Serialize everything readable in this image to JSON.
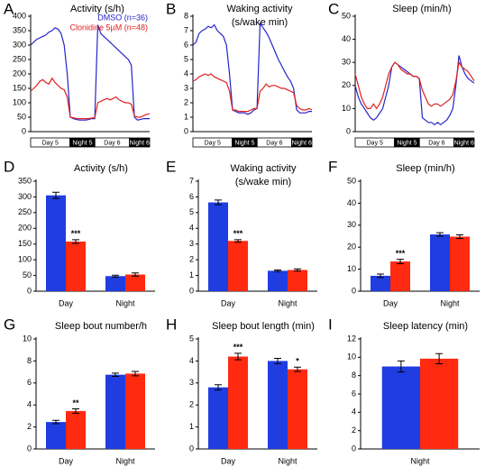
{
  "chart_data": [
    {
      "type": "line",
      "panel": "A",
      "title": [
        "Activity (s/h)"
      ],
      "periods": [
        "Day 5",
        "Night 5",
        "Day 6",
        "Night 6"
      ],
      "series": [
        {
          "name": "DMSO (n=36)",
          "color": "#2424c8",
          "values": [
            300,
            310,
            320,
            325,
            330,
            335,
            345,
            350,
            360,
            355,
            340,
            300,
            200,
            50,
            45,
            42,
            40,
            40,
            40,
            42,
            45,
            45,
            370,
            340,
            330,
            320,
            310,
            300,
            290,
            280,
            270,
            260,
            250,
            230,
            50,
            40,
            42,
            45,
            45,
            45
          ]
        },
        {
          "name": "Clonidine 5µM (n=48)",
          "color": "#e02020",
          "values": [
            140,
            150,
            160,
            175,
            180,
            170,
            165,
            185,
            170,
            160,
            150,
            145,
            120,
            50,
            48,
            45,
            45,
            45,
            45,
            45,
            47,
            48,
            100,
            105,
            110,
            115,
            110,
            115,
            120,
            110,
            105,
            100,
            100,
            95,
            55,
            50,
            50,
            55,
            60,
            62
          ]
        }
      ],
      "ylim": [
        0,
        400
      ],
      "yticks": [
        0,
        50,
        100,
        150,
        200,
        250,
        300,
        350,
        400
      ]
    },
    {
      "type": "line",
      "panel": "B",
      "title": [
        "Waking activity",
        "(s/wake min)"
      ],
      "periods": [
        "Day 5",
        "Night 5",
        "Day 6",
        "Night 6"
      ],
      "series": [
        {
          "color": "#2424c8",
          "values": [
            6.0,
            6.2,
            6.8,
            7.0,
            7.1,
            7.3,
            7.2,
            7.4,
            7.0,
            6.8,
            6.6,
            6.0,
            4.0,
            1.5,
            1.4,
            1.3,
            1.3,
            1.3,
            1.2,
            1.3,
            1.5,
            1.6,
            7.5,
            7.2,
            6.9,
            6.5,
            6.0,
            5.5,
            5.0,
            4.6,
            4.2,
            3.8,
            3.5,
            3.0,
            1.5,
            1.3,
            1.3,
            1.3,
            1.4,
            1.4
          ]
        },
        {
          "color": "#e02020",
          "values": [
            3.5,
            3.6,
            3.8,
            3.9,
            4.0,
            3.9,
            4.0,
            3.8,
            3.7,
            3.6,
            3.5,
            3.4,
            2.8,
            1.5,
            1.5,
            1.4,
            1.4,
            1.4,
            1.4,
            1.5,
            1.6,
            1.6,
            2.8,
            3.0,
            3.3,
            3.1,
            3.2,
            3.2,
            3.1,
            3.0,
            3.0,
            2.9,
            2.8,
            2.7,
            1.8,
            1.6,
            1.5,
            1.5,
            1.6,
            1.5
          ]
        }
      ],
      "ylim": [
        0,
        8
      ],
      "yticks": [
        0,
        1,
        2,
        3,
        4,
        5,
        6,
        7,
        8
      ]
    },
    {
      "type": "line",
      "panel": "C",
      "title": [
        "Sleep (min/h)"
      ],
      "periods": [
        "Day 5",
        "Night 5",
        "Day 6",
        "Night 6"
      ],
      "series": [
        {
          "color": "#2424c8",
          "values": [
            20,
            15,
            12,
            10,
            8,
            6,
            5,
            6,
            8,
            10,
            15,
            20,
            28,
            30,
            29,
            28,
            27,
            26,
            25,
            24,
            24,
            23,
            6,
            5,
            4,
            4,
            3,
            4,
            3,
            4,
            5,
            7,
            10,
            20,
            33,
            28,
            25,
            23,
            22,
            21
          ]
        },
        {
          "color": "#e02020",
          "values": [
            25,
            20,
            15,
            12,
            10,
            10,
            12,
            10,
            12,
            15,
            20,
            25,
            28,
            30,
            29,
            27,
            26,
            25,
            25,
            24,
            24,
            23,
            18,
            15,
            12,
            11,
            12,
            12,
            11,
            12,
            13,
            14,
            16,
            22,
            30,
            28,
            27,
            26,
            24,
            22
          ]
        }
      ],
      "ylim": [
        0,
        50
      ],
      "yticks": [
        0,
        10,
        20,
        30,
        40,
        50
      ]
    },
    {
      "type": "bar",
      "panel": "D",
      "title": [
        "Activity (s/h)"
      ],
      "categories": [
        "Day",
        "Night"
      ],
      "series": [
        {
          "color": "#1f3de0",
          "values": [
            305,
            48
          ],
          "errors": [
            10,
            3
          ]
        },
        {
          "color": "#ff2a10",
          "values": [
            158,
            53
          ],
          "errors": [
            6,
            5
          ],
          "labels": [
            "***",
            null
          ]
        }
      ],
      "ylim": [
        0,
        350
      ],
      "yticks": [
        0,
        50,
        100,
        150,
        200,
        250,
        300,
        350
      ]
    },
    {
      "type": "bar",
      "panel": "E",
      "title": [
        "Waking activity",
        "(s/wake min)"
      ],
      "categories": [
        "Day",
        "Night"
      ],
      "series": [
        {
          "color": "#1f3de0",
          "values": [
            5.65,
            1.3
          ],
          "errors": [
            0.15,
            0.05
          ]
        },
        {
          "color": "#ff2a10",
          "values": [
            3.2,
            1.35
          ],
          "errors": [
            0.08,
            0.07
          ],
          "labels": [
            "***",
            null
          ]
        }
      ],
      "ylim": [
        0,
        7
      ],
      "yticks": [
        0,
        1,
        2,
        3,
        4,
        5,
        6,
        7
      ]
    },
    {
      "type": "bar",
      "panel": "F",
      "title": [
        "Sleep (min/h)"
      ],
      "categories": [
        "Day",
        "Night"
      ],
      "series": [
        {
          "color": "#1f3de0",
          "values": [
            7,
            25.8
          ],
          "errors": [
            0.8,
            0.8
          ]
        },
        {
          "color": "#ff2a10",
          "values": [
            13.5,
            24.8
          ],
          "errors": [
            1,
            0.8
          ],
          "labels": [
            "***",
            null
          ]
        }
      ],
      "ylim": [
        0,
        50
      ],
      "yticks": [
        0,
        10,
        20,
        30,
        40,
        50
      ]
    },
    {
      "type": "bar",
      "panel": "G",
      "title": [
        "Sleep bout number/h"
      ],
      "categories": [
        "Day",
        "Night"
      ],
      "series": [
        {
          "color": "#1f3de0",
          "values": [
            2.45,
            6.75
          ],
          "errors": [
            0.15,
            0.15
          ]
        },
        {
          "color": "#ff2a10",
          "values": [
            3.45,
            6.85
          ],
          "errors": [
            0.2,
            0.2
          ],
          "labels": [
            "**",
            null
          ]
        }
      ],
      "ylim": [
        0,
        10
      ],
      "yticks": [
        0,
        2,
        4,
        6,
        8,
        10
      ]
    },
    {
      "type": "bar",
      "panel": "H",
      "title": [
        "Sleep bout length (min)"
      ],
      "categories": [
        "Day",
        "Night"
      ],
      "series": [
        {
          "color": "#1f3de0",
          "values": [
            2.8,
            4.0
          ],
          "errors": [
            0.12,
            0.12
          ]
        },
        {
          "color": "#ff2a10",
          "values": [
            4.2,
            3.62
          ],
          "errors": [
            0.15,
            0.1
          ],
          "labels": [
            "***",
            "*"
          ]
        }
      ],
      "ylim": [
        0,
        5
      ],
      "yticks": [
        0,
        1,
        2,
        3,
        4,
        5
      ]
    },
    {
      "type": "bar",
      "panel": "I",
      "title": [
        "Sleep latency (min)"
      ],
      "categories": [
        "Night"
      ],
      "series": [
        {
          "color": "#1f3de0",
          "values": [
            9.0
          ],
          "errors": [
            0.6
          ]
        },
        {
          "color": "#ff2a10",
          "values": [
            9.85
          ],
          "errors": [
            0.55
          ]
        }
      ],
      "ylim": [
        0,
        12
      ],
      "yticks": [
        0,
        2,
        4,
        6,
        8,
        10,
        12
      ]
    }
  ]
}
